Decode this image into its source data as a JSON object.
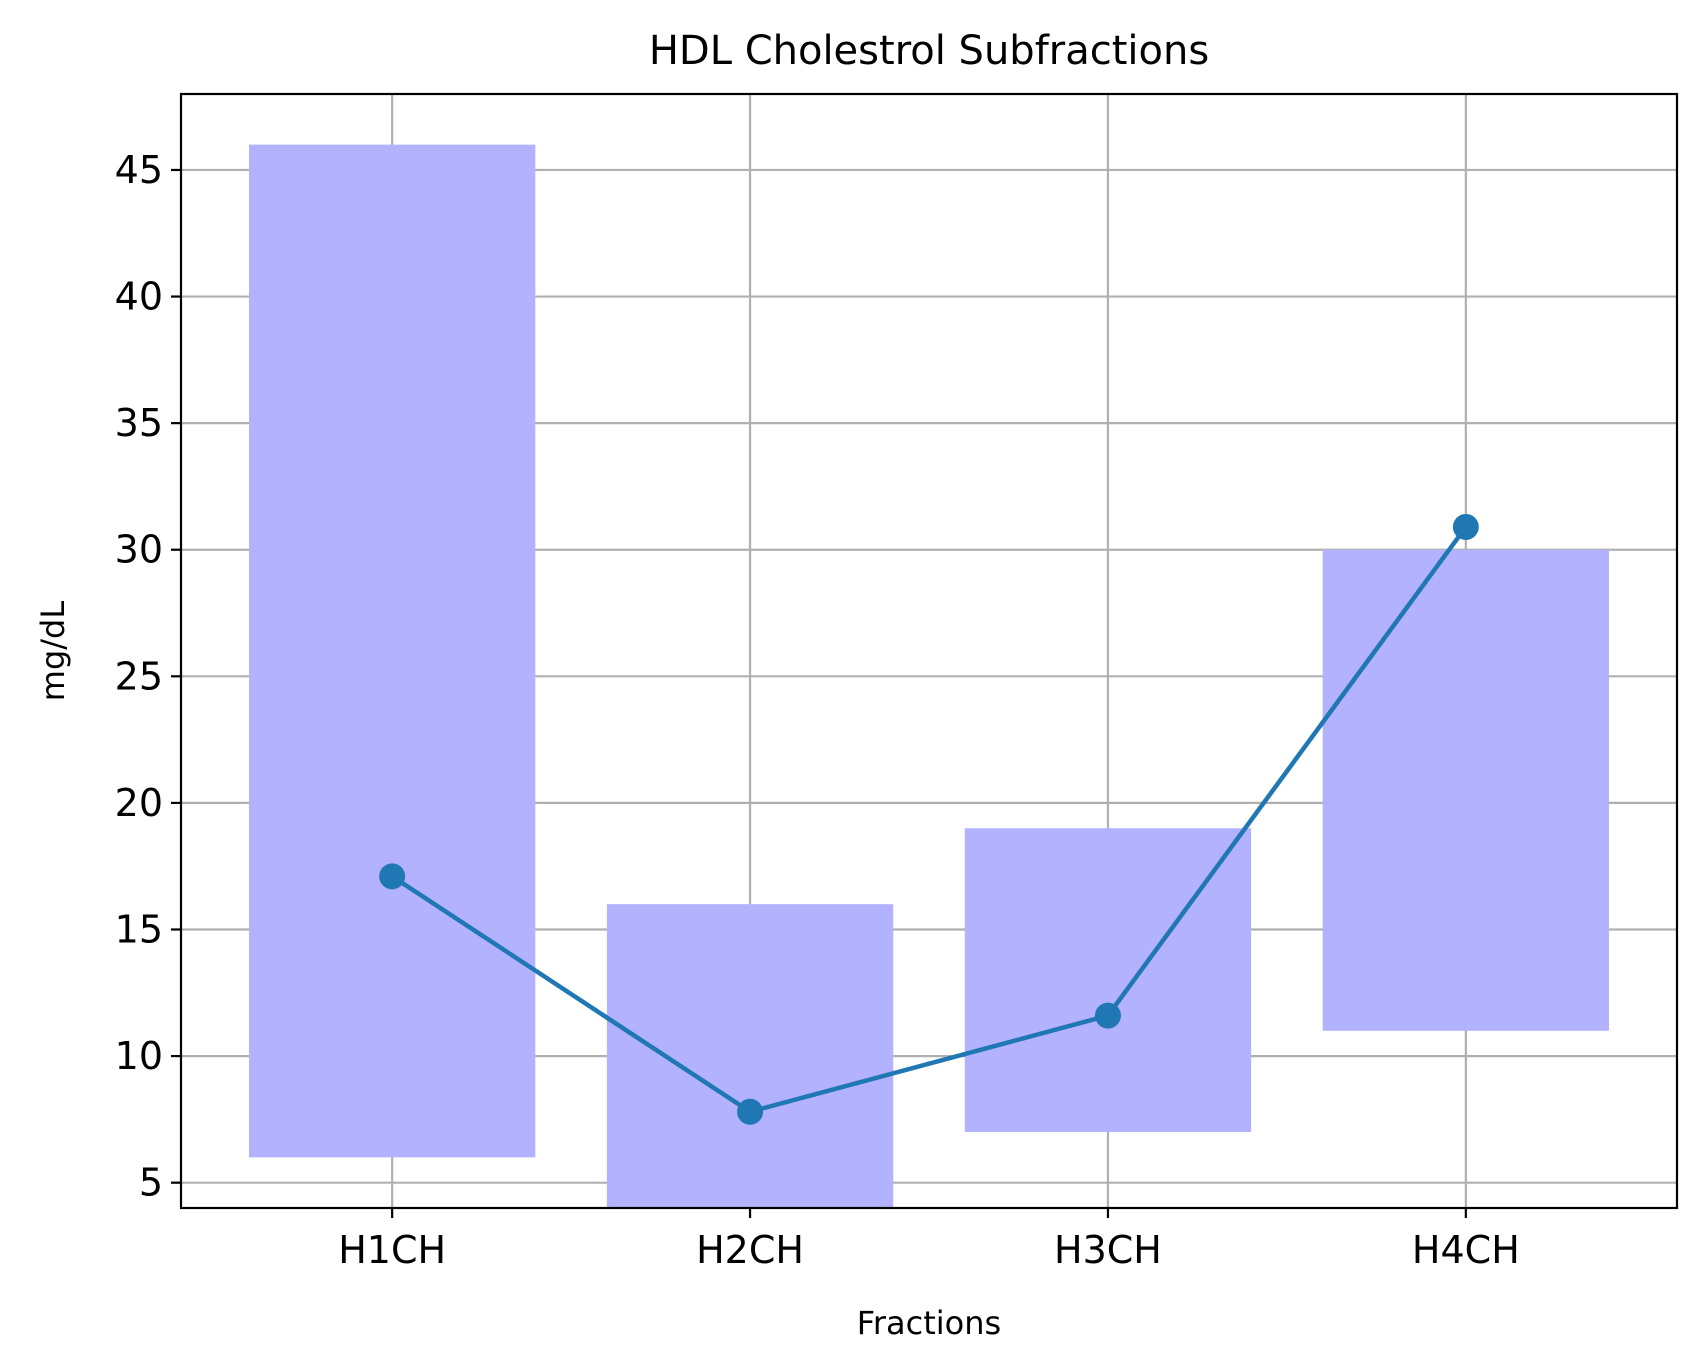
{
  "chart_data": {
    "type": "bar",
    "title": "HDL Cholestrol Subfractions",
    "xlabel": "Fractions",
    "ylabel": "mg/dL",
    "categories": [
      "H1CH",
      "H2CH",
      "H3CH",
      "H4CH"
    ],
    "ylim": [
      4,
      48
    ],
    "yticks": [
      "5",
      "10",
      "15",
      "20",
      "25",
      "30",
      "35",
      "40",
      "45"
    ],
    "grid": true,
    "legend": "none",
    "ranges": {
      "type": "floating-bar",
      "low": [
        6,
        4,
        7,
        11
      ],
      "high": [
        46,
        16,
        19,
        30
      ],
      "color": "#b2b2ff"
    },
    "series": [
      {
        "type": "line",
        "values": [
          17.1,
          7.8,
          11.6,
          30.9
        ],
        "color": "#1f77b4",
        "marker": "circle"
      }
    ]
  }
}
